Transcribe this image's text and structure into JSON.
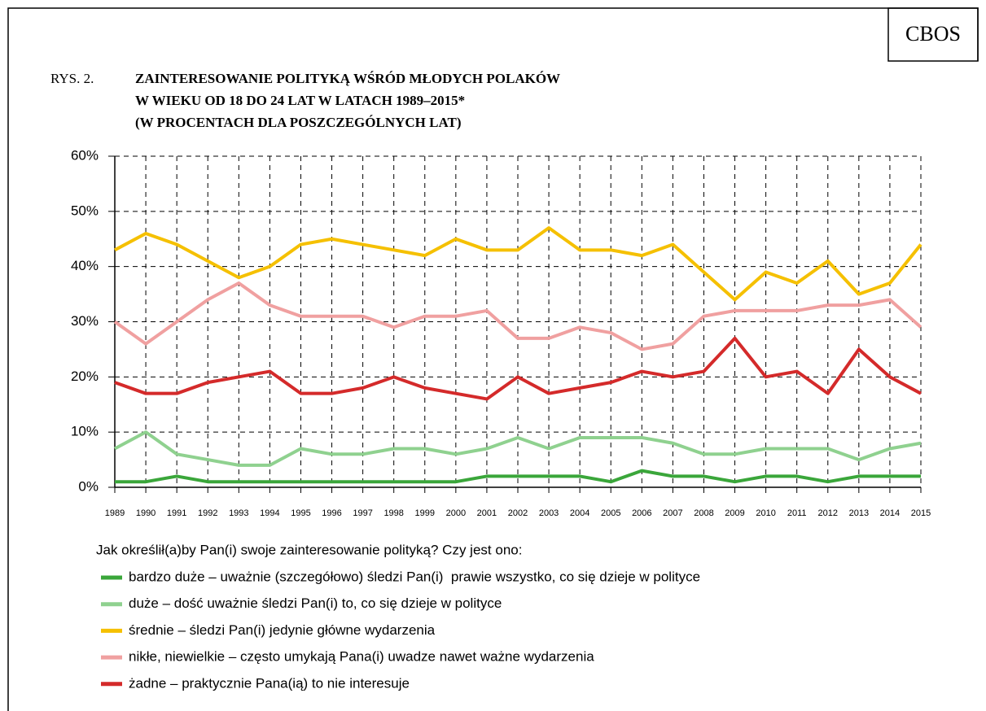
{
  "chart_data": {
    "type": "line",
    "source": "CBOS",
    "figure_label": "RYS. 2.",
    "title": [
      "ZAINTERESOWANIE POLITYKĄ WŚRÓD MŁODYCH POLAKÓW",
      "W WIEKU OD 18 DO 24 LAT W LATACH 1989–2015*",
      "(W PROCENTACH DLA POSZCZEGÓLNYCH LAT)"
    ],
    "legend_title": "Jak określił(a)by Pan(i) swoje zainteresowanie polityką? Czy jest ono:",
    "categories": [
      "1989",
      "1990",
      "1991",
      "1992",
      "1993",
      "1994",
      "1995",
      "1996",
      "1997",
      "1998",
      "1999",
      "2000",
      "2001",
      "2002",
      "2003",
      "2004",
      "2005",
      "2006",
      "2007",
      "2008",
      "2009",
      "2010",
      "2011",
      "2012",
      "2013",
      "2014",
      "2015"
    ],
    "ylim": [
      0,
      60
    ],
    "yticks": [
      {
        "value": 0,
        "label": "0%"
      },
      {
        "value": 10,
        "label": "10%"
      },
      {
        "value": 20,
        "label": "20%"
      },
      {
        "value": 30,
        "label": "30%"
      },
      {
        "value": 40,
        "label": "40%"
      },
      {
        "value": 50,
        "label": "50%"
      },
      {
        "value": 60,
        "label": "60%"
      }
    ],
    "grid": true,
    "series": [
      {
        "name": "bardzo duże – uważnie (szczegółowo) śledzi Pan(i)  prawie wszystko, co się dzieje w polityce",
        "color": "#3aa63a",
        "values": [
          1,
          1,
          2,
          1,
          1,
          1,
          1,
          1,
          1,
          1,
          1,
          1,
          2,
          2,
          2,
          2,
          1,
          3,
          2,
          2,
          1,
          2,
          2,
          1,
          2,
          2,
          2
        ]
      },
      {
        "name": "duże – dość uważnie śledzi Pan(i) to, co się dzieje w polityce",
        "color": "#8fd18f",
        "values": [
          7,
          10,
          6,
          5,
          4,
          4,
          7,
          6,
          6,
          7,
          7,
          6,
          7,
          9,
          7,
          9,
          9,
          9,
          8,
          6,
          6,
          7,
          7,
          7,
          5,
          7,
          8
        ]
      },
      {
        "name": "średnie – śledzi Pan(i) jedynie główne wydarzenia",
        "color": "#f5c000",
        "values": [
          43,
          46,
          44,
          41,
          38,
          40,
          44,
          45,
          44,
          43,
          42,
          45,
          43,
          43,
          47,
          43,
          43,
          42,
          44,
          39,
          34,
          39,
          37,
          41,
          35,
          37,
          44
        ]
      },
      {
        "name": "nikłe, niewielkie – często umykają Pana(i) uwadze nawet ważne wydarzenia",
        "color": "#f0a0a0",
        "values": [
          30,
          26,
          30,
          34,
          37,
          33,
          31,
          31,
          31,
          29,
          31,
          31,
          32,
          27,
          27,
          29,
          28,
          25,
          26,
          31,
          32,
          32,
          32,
          33,
          33,
          34,
          29
        ]
      },
      {
        "name": "żadne – praktycznie Pana(ią) to nie interesuje",
        "color": "#d42a2a",
        "values": [
          19,
          17,
          17,
          19,
          20,
          21,
          17,
          17,
          18,
          20,
          18,
          17,
          16,
          20,
          17,
          18,
          19,
          21,
          20,
          21,
          27,
          20,
          21,
          17,
          25,
          20,
          17
        ]
      }
    ]
  }
}
